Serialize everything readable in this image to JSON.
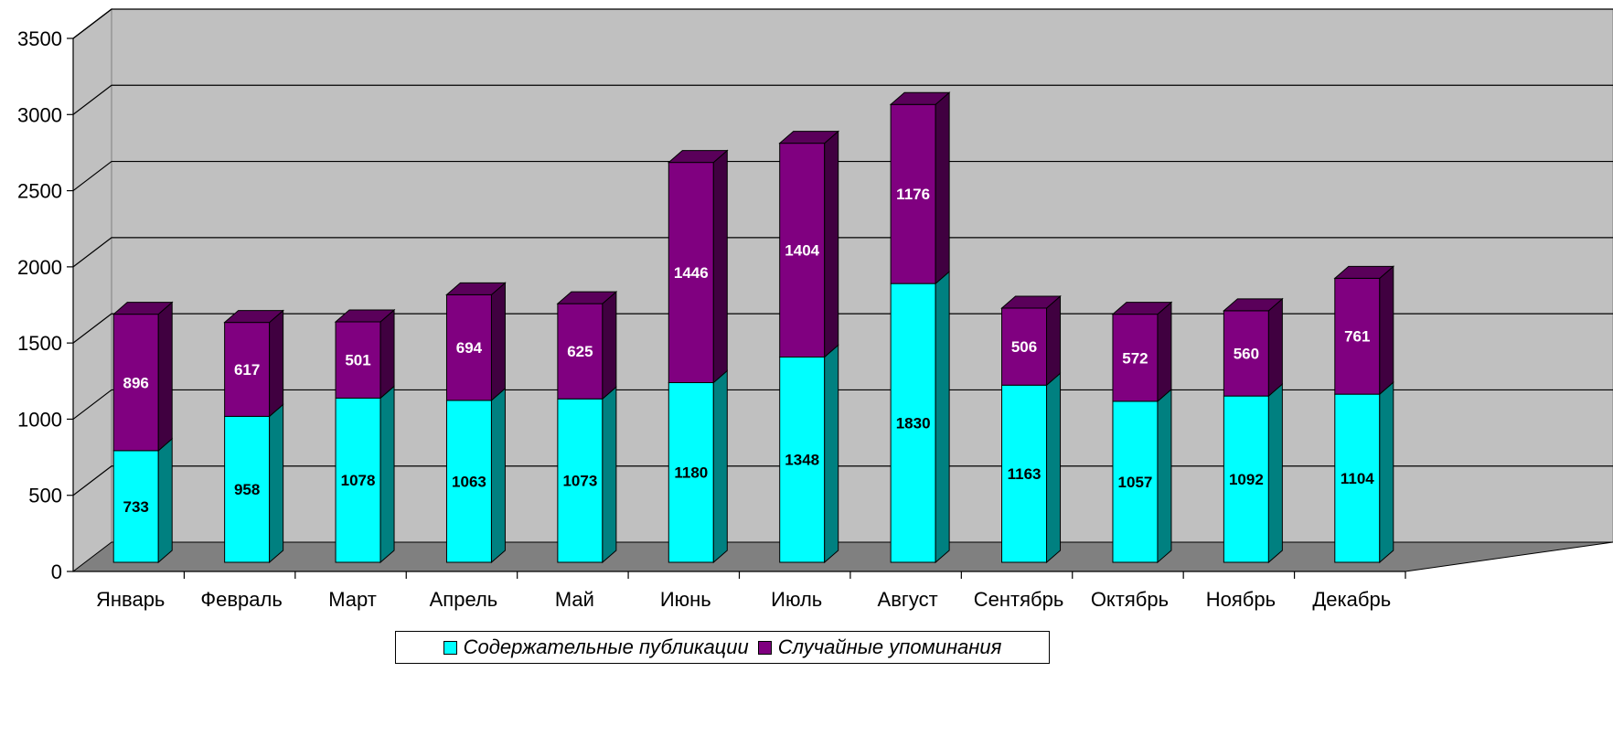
{
  "chart_data": {
    "type": "bar",
    "stacked": true,
    "three_d": true,
    "categories": [
      "Январь",
      "Февраль",
      "Март",
      "Апрель",
      "Май",
      "Июнь",
      "Июль",
      "Август",
      "Сентябрь",
      "Октябрь",
      "Ноябрь",
      "Декабрь"
    ],
    "series": [
      {
        "name": "Содержательные публикации",
        "values": [
          733,
          958,
          1078,
          1063,
          1073,
          1180,
          1348,
          1830,
          1163,
          1057,
          1092,
          1104
        ],
        "color": "#00ffff",
        "label_color": "#000000"
      },
      {
        "name": "Случайные упоминания",
        "values": [
          896,
          617,
          501,
          694,
          625,
          1446,
          1404,
          1176,
          506,
          572,
          560,
          761
        ],
        "color": "#800080",
        "label_color": "#ffffff"
      }
    ],
    "y_ticks": [
      "0",
      "500",
      "1000",
      "1500",
      "2000",
      "2500",
      "3000",
      "3500"
    ],
    "ylim": [
      0,
      3500
    ],
    "grid": true,
    "legend_position": "bottom",
    "wall_color": "#c0c0c0",
    "floor_color": "#808080"
  }
}
